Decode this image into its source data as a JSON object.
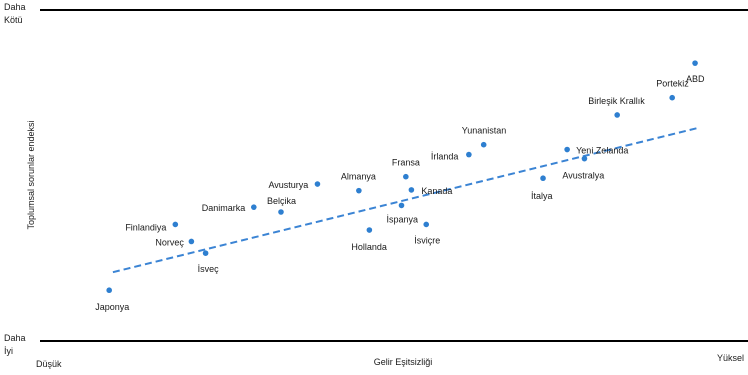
{
  "chart_data": {
    "type": "scatter",
    "xlabel": "Gelir Eşitsizliği",
    "ylabel": "Toplumsal sorunlar endeksi",
    "x_low_label": "Düşük",
    "x_high_label": "Yüksel",
    "y_top_label_line1": "Daha",
    "y_top_label_line2": "Kötü",
    "y_bottom_label_line1": "Daha",
    "y_bottom_label_line2": "İyi",
    "xlim": [
      0,
      100
    ],
    "ylim": [
      0,
      100
    ],
    "grid": false,
    "trendline": {
      "x": [
        5,
        100
      ],
      "y": [
        20,
        77
      ]
    },
    "points": [
      {
        "name": "Japonya",
        "x": 4.4,
        "y": 12.9
      },
      {
        "name": "Finlandiya",
        "x": 15.1,
        "y": 38.8
      },
      {
        "name": "Norveç",
        "x": 17.7,
        "y": 32.1
      },
      {
        "name": "İsveç",
        "x": 20.0,
        "y": 27.5
      },
      {
        "name": "Danimarka",
        "x": 27.8,
        "y": 45.6
      },
      {
        "name": "Belçika",
        "x": 32.2,
        "y": 43.7
      },
      {
        "name": "Avusturya",
        "x": 38.1,
        "y": 54.7
      },
      {
        "name": "Almanya",
        "x": 44.8,
        "y": 52.1
      },
      {
        "name": "Hollanda",
        "x": 46.5,
        "y": 36.6
      },
      {
        "name": "İspanya",
        "x": 51.7,
        "y": 46.3
      },
      {
        "name": "Fransa",
        "x": 52.4,
        "y": 57.6
      },
      {
        "name": "Kanada",
        "x": 53.3,
        "y": 52.4
      },
      {
        "name": "İsviçre",
        "x": 55.7,
        "y": 38.8
      },
      {
        "name": "İrlanda",
        "x": 62.6,
        "y": 66.3
      },
      {
        "name": "Yunanistan",
        "x": 65.0,
        "y": 70.2
      },
      {
        "name": "İtalya",
        "x": 74.6,
        "y": 57.0
      },
      {
        "name": "Yeni Zelanda",
        "x": 78.5,
        "y": 68.3
      },
      {
        "name": "Avustralya",
        "x": 81.3,
        "y": 64.7
      },
      {
        "name": "Birleşik Krallık",
        "x": 86.6,
        "y": 81.9
      },
      {
        "name": "Portekiz",
        "x": 95.5,
        "y": 88.7
      },
      {
        "name": "ABD",
        "x": 99.2,
        "y": 102.3
      }
    ]
  }
}
